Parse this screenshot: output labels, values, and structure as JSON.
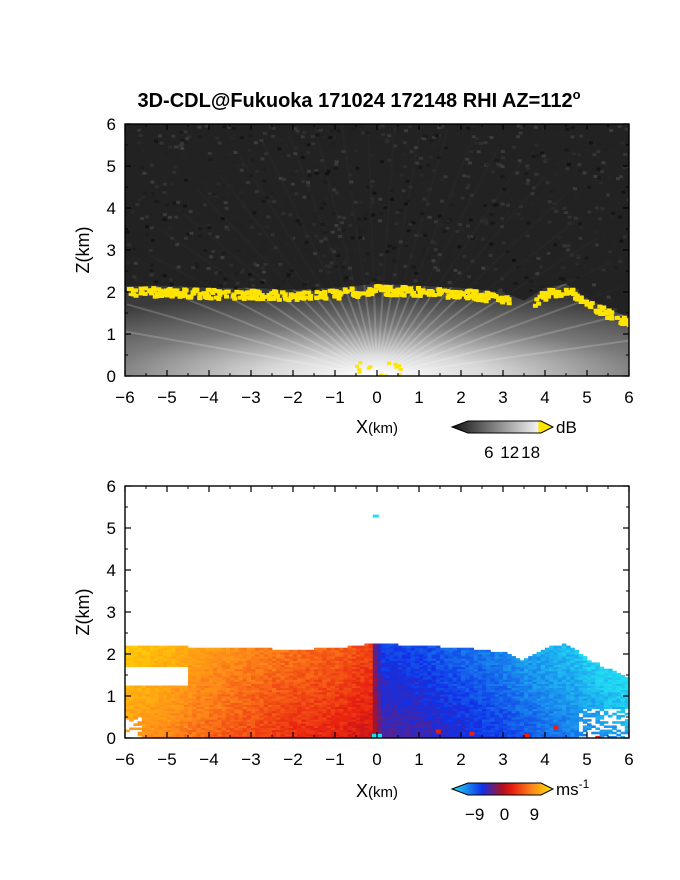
{
  "figure": {
    "title": "3D-CDL@Fukuoka 171024 172148 RHI AZ=112",
    "title_degree": "o"
  },
  "chart_data": [
    {
      "type": "heatmap",
      "panel": "top",
      "quantity": "backscatter",
      "colormap": "grayscale with yellow saturation",
      "xlabel_main": "X",
      "xlabel_unit": "(km)",
      "ylabel": "Z(km)",
      "xlim": [
        -6,
        6
      ],
      "ylim": [
        0,
        6
      ],
      "xticks": [
        "-6",
        "-5",
        "-4",
        "-3",
        "-2",
        "-1",
        "0",
        "1",
        "2",
        "3",
        "4",
        "5",
        "6"
      ],
      "yticks": [
        "0",
        "1",
        "2",
        "3",
        "4",
        "5",
        "6"
      ],
      "colorbar": {
        "unit": "dB",
        "ticks": [
          "6",
          "12",
          "18"
        ],
        "range": [
          0,
          21
        ]
      },
      "boundary_layer_top_km": [
        {
          "x": -6,
          "z": 2.15
        },
        {
          "x": -5,
          "z": 2.15
        },
        {
          "x": -4,
          "z": 2.1
        },
        {
          "x": -3,
          "z": 2.1
        },
        {
          "x": -2,
          "z": 2.05
        },
        {
          "x": -1,
          "z": 2.1
        },
        {
          "x": 0,
          "z": 2.2
        },
        {
          "x": 1,
          "z": 2.15
        },
        {
          "x": 2,
          "z": 2.1
        },
        {
          "x": 3,
          "z": 2.0
        },
        {
          "x": 3.5,
          "z": 1.8
        },
        {
          "x": 4,
          "z": 2.1
        },
        {
          "x": 4.5,
          "z": 2.2
        },
        {
          "x": 5,
          "z": 1.85
        },
        {
          "x": 5.5,
          "z": 1.6
        },
        {
          "x": 6,
          "z": 1.4
        }
      ]
    },
    {
      "type": "heatmap",
      "panel": "bottom",
      "quantity": "radial velocity",
      "colormap": "cyan-blue-red-yellow diverging",
      "xlabel_main": "X",
      "xlabel_unit": "(km)",
      "ylabel": "Z(km)",
      "xlim": [
        -6,
        6
      ],
      "ylim": [
        0,
        6
      ],
      "xticks": [
        "-6",
        "-5",
        "-4",
        "-3",
        "-2",
        "-1",
        "0",
        "1",
        "2",
        "3",
        "4",
        "5",
        "6"
      ],
      "yticks": [
        "0",
        "1",
        "2",
        "3",
        "4",
        "5",
        "6"
      ],
      "colorbar": {
        "unit": "ms",
        "unit_exp": "-1",
        "ticks": [
          "-9",
          "0",
          "9"
        ],
        "range": [
          -11,
          11
        ]
      },
      "velocity_profile": [
        {
          "x": -6,
          "v": 7
        },
        {
          "x": -5,
          "v": 6
        },
        {
          "x": -4,
          "v": 4.5
        },
        {
          "x": -3,
          "v": 3.5
        },
        {
          "x": -2,
          "v": 2.5
        },
        {
          "x": -1,
          "v": 2
        },
        {
          "x": -0.1,
          "v": 1
        },
        {
          "x": 0.1,
          "v": -3
        },
        {
          "x": 1,
          "v": -3.5
        },
        {
          "x": 2,
          "v": -4.5
        },
        {
          "x": 3,
          "v": -5.5
        },
        {
          "x": 4,
          "v": -7
        },
        {
          "x": 5,
          "v": -8
        },
        {
          "x": 6,
          "v": -9
        }
      ]
    }
  ],
  "colors": {
    "yellow": "#ffe400",
    "cyan": "#22ddf2",
    "blue": "#1030e8",
    "red": "#e82010",
    "orange": "#ff8a1a"
  }
}
